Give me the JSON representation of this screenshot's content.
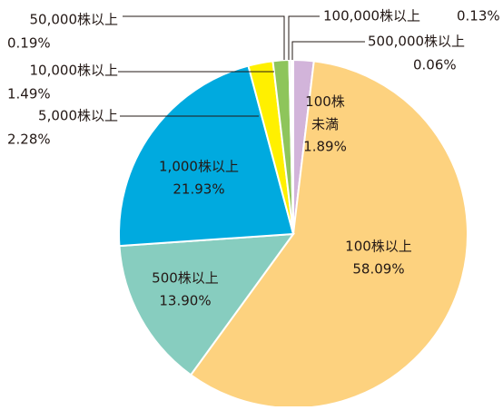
{
  "chart_data": {
    "type": "pie",
    "categories": [
      "100株未満",
      "100株以上",
      "500株以上",
      "1,000株以上",
      "5,000株以上",
      "10,000株以上",
      "50,000株以上",
      "100,000株以上",
      "500,000株以上"
    ],
    "values": [
      1.89,
      58.09,
      13.9,
      21.93,
      2.28,
      1.49,
      0.19,
      0.13,
      0.06
    ],
    "value_labels": [
      "1.89%",
      "58.09%",
      "13.90%",
      "21.93%",
      "2.28%",
      "1.49%",
      "0.19%",
      "0.13%",
      "0.06%"
    ],
    "colors": [
      "#d2b4da",
      "#fdd27f",
      "#87cdbf",
      "#00aadf",
      "#fff000",
      "#8ec55b",
      "#b0b0b0",
      "#a9d6ef",
      "#f3a6c4"
    ]
  }
}
